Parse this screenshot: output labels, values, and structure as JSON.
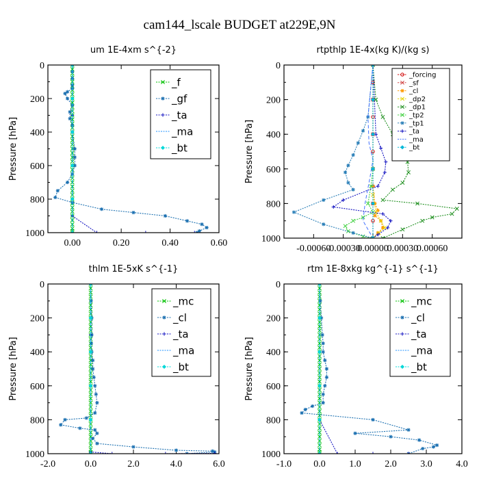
{
  "figure_title": "cam144_lscale  BUDGET at229E,9N",
  "colors": {
    "f": "#00c000",
    "gf": "#1a6fb0",
    "ta": "#1010c0",
    "ma": "#1e90ff",
    "bt": "#00d8d8",
    "mc": "#00c000",
    "cl": "#1a6fb0",
    "forcing": "#d00000",
    "sf": "#d04040",
    "cl_rt": "#ff9900",
    "dp2": "#e6d200",
    "dp1": "#209020",
    "tp2": "#40d040",
    "tp1": "#2a7fb8",
    "ta_rt": "#1010c0",
    "ma_rt": "#4070ff",
    "bt_rt": "#00b8d8"
  },
  "chart_data": [
    {
      "type": "line",
      "title": "um  1E-4xm s^{-2}",
      "ylabel": "Pressure [hPa]",
      "xlim": [
        -0.1,
        0.6
      ],
      "ylim": [
        1000,
        0
      ],
      "xticks": [
        "0.00",
        "0.20",
        "0.40",
        "0.60"
      ],
      "xtick_values": [
        0.0,
        0.2,
        0.4,
        0.6
      ],
      "yticks": [
        "0",
        "200",
        "400",
        "600",
        "800",
        "1000"
      ],
      "ytick_values": [
        0,
        200,
        400,
        600,
        800,
        1000
      ],
      "legend_position": "top-right",
      "legend": [
        "_f",
        "_gf",
        "_ta",
        "_ma",
        "_bt"
      ],
      "series": [
        {
          "name": "_f",
          "color_key": "f",
          "marker": "x",
          "x": [
            0,
            0,
            0,
            0,
            0,
            0,
            0,
            0,
            0,
            0,
            0,
            0,
            0,
            0,
            0,
            0,
            0,
            0,
            0,
            0,
            0,
            0,
            0,
            0,
            0,
            0,
            0,
            0,
            0,
            0,
            0,
            0,
            0,
            0,
            0,
            0,
            0,
            0,
            0,
            0,
            0,
            0
          ],
          "y": [
            0,
            25,
            50,
            75,
            100,
            125,
            150,
            175,
            200,
            225,
            250,
            275,
            300,
            325,
            350,
            375,
            400,
            425,
            450,
            475,
            500,
            525,
            550,
            575,
            600,
            625,
            650,
            675,
            700,
            725,
            750,
            775,
            800,
            825,
            850,
            875,
            900,
            925,
            950,
            975,
            990,
            1000
          ]
        },
        {
          "name": "_gf",
          "color_key": "gf",
          "marker": "*",
          "x": [
            0.0,
            0.0,
            0.0,
            0.0,
            0.0,
            -0.02,
            -0.03,
            -0.02,
            0.0,
            -0.01,
            -0.01,
            0.0,
            0.0,
            0.01,
            0.01,
            0.01,
            0.0,
            -0.02,
            -0.06,
            -0.07,
            0.0,
            0.12,
            0.25,
            0.38,
            0.47,
            0.53,
            0.55,
            0.52,
            0.51
          ],
          "y": [
            0,
            40,
            80,
            120,
            140,
            160,
            170,
            200,
            240,
            280,
            320,
            360,
            400,
            500,
            550,
            600,
            650,
            700,
            750,
            790,
            820,
            860,
            880,
            900,
            930,
            950,
            970,
            990,
            1000
          ]
        },
        {
          "name": "_ta",
          "color_key": "ta",
          "marker": "+",
          "x": [
            0,
            0,
            0,
            0,
            0.1,
            0.3,
            0.5
          ],
          "y": [
            0,
            300,
            600,
            900,
            1000,
            1000,
            1000
          ]
        },
        {
          "name": "_ma",
          "color_key": "ma",
          "marker": "-",
          "x": [
            0,
            0
          ],
          "y": [
            0,
            1000
          ]
        },
        {
          "name": "_bt",
          "color_key": "bt",
          "marker": "diamond",
          "x": [
            0,
            0,
            0,
            0,
            0,
            0
          ],
          "y": [
            0,
            200,
            400,
            600,
            800,
            1000
          ]
        }
      ]
    },
    {
      "type": "line",
      "title": "rtpthlp  1E-4x(kg K)/(kg s)",
      "ylabel": "Pressure [hPa]",
      "xlim": [
        -0.0009,
        0.0009
      ],
      "ylim": [
        1000,
        0
      ],
      "xticks": [
        "-0.00060",
        "-0.00030",
        "0.00000",
        "0.00030",
        "0.00060"
      ],
      "xtick_values": [
        -0.0006,
        -0.0003,
        0.0,
        0.0003,
        0.0006
      ],
      "yticks": [
        "0",
        "200",
        "400",
        "600",
        "800",
        "1000"
      ],
      "ytick_values": [
        0,
        200,
        400,
        600,
        800,
        1000
      ],
      "legend_position": "top-right",
      "legend": [
        "_forcing",
        "_sf",
        "_cl",
        "_dp2",
        "_dp1",
        "_tp2",
        "_tp1",
        "_ta",
        "_ma",
        "_bt"
      ],
      "series": [
        {
          "name": "_forcing",
          "color_key": "forcing",
          "marker": "o",
          "x": [
            0,
            0,
            0,
            0,
            0,
            0,
            0,
            0,
            0,
            0,
            0
          ],
          "y": [
            0,
            100,
            200,
            300,
            400,
            500,
            600,
            700,
            800,
            900,
            1000
          ]
        },
        {
          "name": "_sf",
          "color_key": "sf",
          "marker": "x",
          "x": [
            0,
            0,
            0,
            0,
            0,
            0
          ],
          "y": [
            0,
            200,
            400,
            600,
            800,
            1000
          ]
        },
        {
          "name": "_cl",
          "color_key": "cl_rt",
          "marker": "*",
          "x": [
            0,
            0,
            2e-05,
            5e-05,
            2e-05,
            8e-05,
            0.0001,
            5e-05,
            0
          ],
          "y": [
            0,
            700,
            800,
            840,
            870,
            900,
            940,
            970,
            1000
          ]
        },
        {
          "name": "_dp2",
          "color_key": "dp2",
          "marker": "x",
          "x": [
            0,
            0,
            3e-05,
            8e-05,
            0.00012,
            6e-05,
            0
          ],
          "y": [
            0,
            750,
            850,
            900,
            940,
            970,
            1000
          ]
        },
        {
          "name": "_dp1",
          "color_key": "dp1",
          "marker": "x",
          "x": [
            0,
            3e-05,
            0.0001,
            0.0002,
            0.0003,
            0.00035,
            0.00036,
            0.0003,
            0.0002,
            0.0001,
            0.00045,
            0.00085,
            0.0008,
            0.0006,
            0.0005,
            0.0003,
            0.0001
          ],
          "y": [
            0,
            200,
            300,
            400,
            480,
            560,
            620,
            680,
            720,
            780,
            800,
            830,
            860,
            880,
            900,
            950,
            1000
          ]
        },
        {
          "name": "_tp2",
          "color_key": "tp2",
          "marker": "x",
          "x": [
            0,
            0,
            -2e-05,
            -5e-05,
            0,
            -0.0001,
            -0.0002,
            -0.00028,
            -0.00025,
            -0.0001,
            0
          ],
          "y": [
            0,
            600,
            700,
            800,
            850,
            880,
            900,
            930,
            960,
            990,
            1000
          ]
        },
        {
          "name": "_tp1",
          "color_key": "tp1",
          "marker": "*",
          "x": [
            0,
            -5e-05,
            -0.0001,
            -0.00015,
            -0.0002,
            -0.00025,
            -0.00028,
            -0.00025,
            -0.0002,
            -0.0005,
            -0.0008,
            -0.0005,
            -0.0002,
            0
          ],
          "y": [
            0,
            300,
            380,
            450,
            520,
            580,
            620,
            680,
            720,
            780,
            850,
            920,
            970,
            1000
          ]
        },
        {
          "name": "_ta",
          "color_key": "ta_rt",
          "marker": "+",
          "x": [
            0,
            3e-05,
            8e-05,
            0.00013,
            0.00012,
            5e-05,
            -0.0003,
            -0.0004,
            0.0001,
            0.00018,
            0.00015,
            5e-05,
            0
          ],
          "y": [
            0,
            400,
            480,
            560,
            620,
            700,
            780,
            820,
            860,
            900,
            940,
            980,
            1000
          ]
        },
        {
          "name": "_ma",
          "color_key": "ma_rt",
          "marker": "-",
          "x": [
            0,
            -5e-05,
            -4e-05,
            0,
            -3e-05,
            -8e-05,
            -0.0001,
            0
          ],
          "y": [
            0,
            300,
            450,
            550,
            650,
            800,
            900,
            1000
          ]
        },
        {
          "name": "_bt",
          "color_key": "bt_rt",
          "marker": "diamond",
          "x": [
            0,
            0,
            0,
            0,
            0,
            0
          ],
          "y": [
            0,
            200,
            400,
            600,
            800,
            1000
          ]
        }
      ]
    },
    {
      "type": "line",
      "title": "thlm  1E-5xK s^{-1}",
      "ylabel": "Pressure [hPa]",
      "xlim": [
        -2.0,
        6.0
      ],
      "ylim": [
        1000,
        0
      ],
      "xticks": [
        "-2.0",
        "0.0",
        "2.0",
        "4.0",
        "6.0"
      ],
      "xtick_values": [
        -2.0,
        0.0,
        2.0,
        4.0,
        6.0
      ],
      "yticks": [
        "0",
        "200",
        "400",
        "600",
        "800",
        "1000"
      ],
      "ytick_values": [
        0,
        200,
        400,
        600,
        800,
        1000
      ],
      "legend_position": "top-right",
      "legend": [
        "_mc",
        "_cl",
        "_ta",
        "_ma",
        "_bt"
      ],
      "series": [
        {
          "name": "_mc",
          "color_key": "mc",
          "marker": "x",
          "x": [
            0,
            0,
            0,
            0,
            0,
            0,
            0,
            0,
            0,
            0,
            0,
            0,
            0,
            0,
            0,
            0,
            0,
            0,
            0,
            0,
            0,
            0,
            0,
            0,
            0,
            0,
            0,
            0,
            0,
            0,
            0,
            0,
            0,
            0,
            0,
            0,
            0,
            0,
            0,
            0,
            0,
            0
          ],
          "y": [
            0,
            25,
            50,
            75,
            100,
            125,
            150,
            175,
            200,
            225,
            250,
            275,
            300,
            325,
            350,
            375,
            400,
            425,
            450,
            475,
            500,
            525,
            550,
            575,
            600,
            625,
            650,
            675,
            700,
            725,
            750,
            775,
            800,
            825,
            850,
            875,
            900,
            925,
            950,
            975,
            990,
            1000
          ]
        },
        {
          "name": "_cl",
          "color_key": "cl",
          "marker": "*",
          "x": [
            0,
            0.02,
            0.05,
            0.05,
            0.03,
            0.05,
            0.1,
            0.1,
            0.15,
            0.2,
            0.25,
            0.3,
            0.2,
            -0.2,
            -1.2,
            -1.4,
            -0.5,
            0.2,
            0.3,
            0.1,
            0.3,
            2.0,
            4.0,
            5.7,
            5.8,
            4.5
          ],
          "y": [
            0,
            100,
            200,
            300,
            350,
            400,
            450,
            500,
            550,
            600,
            650,
            700,
            760,
            790,
            800,
            830,
            850,
            860,
            880,
            910,
            940,
            960,
            980,
            985,
            990,
            1000
          ]
        },
        {
          "name": "_ta",
          "color_key": "ta",
          "marker": "+",
          "x": [
            0,
            0,
            0,
            0,
            1.0,
            3.5,
            5.8
          ],
          "y": [
            0,
            300,
            600,
            990,
            1000,
            1000,
            998
          ]
        },
        {
          "name": "_ma",
          "color_key": "ma",
          "marker": "-",
          "x": [
            0,
            0
          ],
          "y": [
            0,
            1000
          ]
        },
        {
          "name": "_bt",
          "color_key": "bt",
          "marker": "diamond",
          "x": [
            0,
            0,
            0,
            0,
            0,
            0
          ],
          "y": [
            0,
            200,
            400,
            600,
            800,
            1000
          ]
        }
      ]
    },
    {
      "type": "line",
      "title": "rtm  1E-8xkg kg^{-1} s^{-1}",
      "ylabel": "Pressure [hPa]",
      "xlim": [
        -1.0,
        4.0
      ],
      "ylim": [
        1000,
        0
      ],
      "xticks": [
        "-1.0",
        "0.0",
        "1.0",
        "2.0",
        "3.0",
        "4.0"
      ],
      "xtick_values": [
        -1.0,
        0.0,
        1.0,
        2.0,
        3.0,
        4.0
      ],
      "yticks": [
        "0",
        "200",
        "400",
        "600",
        "800",
        "1000"
      ],
      "ytick_values": [
        0,
        200,
        400,
        600,
        800,
        1000
      ],
      "legend_position": "top-right",
      "legend": [
        "_mc",
        "_cl",
        "_ta",
        "_ma",
        "_bt"
      ],
      "series": [
        {
          "name": "_mc",
          "color_key": "mc",
          "marker": "x",
          "x": [
            0,
            0,
            0,
            0,
            0,
            0,
            0,
            0,
            0,
            0,
            0,
            0,
            0,
            0,
            0,
            0,
            0,
            0,
            0,
            0,
            0,
            0,
            0,
            0,
            0,
            0,
            0,
            0,
            0,
            0,
            0,
            0,
            0,
            0,
            0,
            0,
            0,
            0,
            0,
            0,
            0,
            0
          ],
          "y": [
            0,
            25,
            50,
            75,
            100,
            125,
            150,
            175,
            200,
            225,
            250,
            275,
            300,
            325,
            350,
            375,
            400,
            425,
            450,
            475,
            500,
            525,
            550,
            575,
            600,
            625,
            650,
            675,
            700,
            725,
            750,
            775,
            800,
            825,
            850,
            875,
            900,
            925,
            950,
            975,
            990,
            1000
          ]
        },
        {
          "name": "_cl",
          "color_key": "cl",
          "marker": "*",
          "x": [
            0,
            0.02,
            0.05,
            0.08,
            0.1,
            0.1,
            0.15,
            0.2,
            0.2,
            0.15,
            0.1,
            0.1,
            -0.2,
            -0.4,
            -0.5,
            1.5,
            2.5,
            1.0,
            2.0,
            2.8,
            3.3,
            3.2,
            2.9,
            2.5
          ],
          "y": [
            0,
            100,
            200,
            300,
            350,
            400,
            450,
            500,
            550,
            600,
            650,
            700,
            720,
            740,
            760,
            800,
            860,
            880,
            900,
            920,
            950,
            960,
            970,
            1000
          ]
        },
        {
          "name": "_ta",
          "color_key": "ta",
          "marker": "+",
          "x": [
            0,
            0,
            0,
            0.5,
            1.5,
            2.5
          ],
          "y": [
            0,
            400,
            800,
            1000,
            1000,
            1000
          ]
        },
        {
          "name": "_ma",
          "color_key": "ma",
          "marker": "-",
          "x": [
            0,
            0
          ],
          "y": [
            0,
            1000
          ]
        },
        {
          "name": "_bt",
          "color_key": "bt",
          "marker": "diamond",
          "x": [
            0,
            0,
            0,
            0,
            0,
            0
          ],
          "y": [
            0,
            200,
            400,
            600,
            800,
            1000
          ]
        }
      ]
    }
  ]
}
